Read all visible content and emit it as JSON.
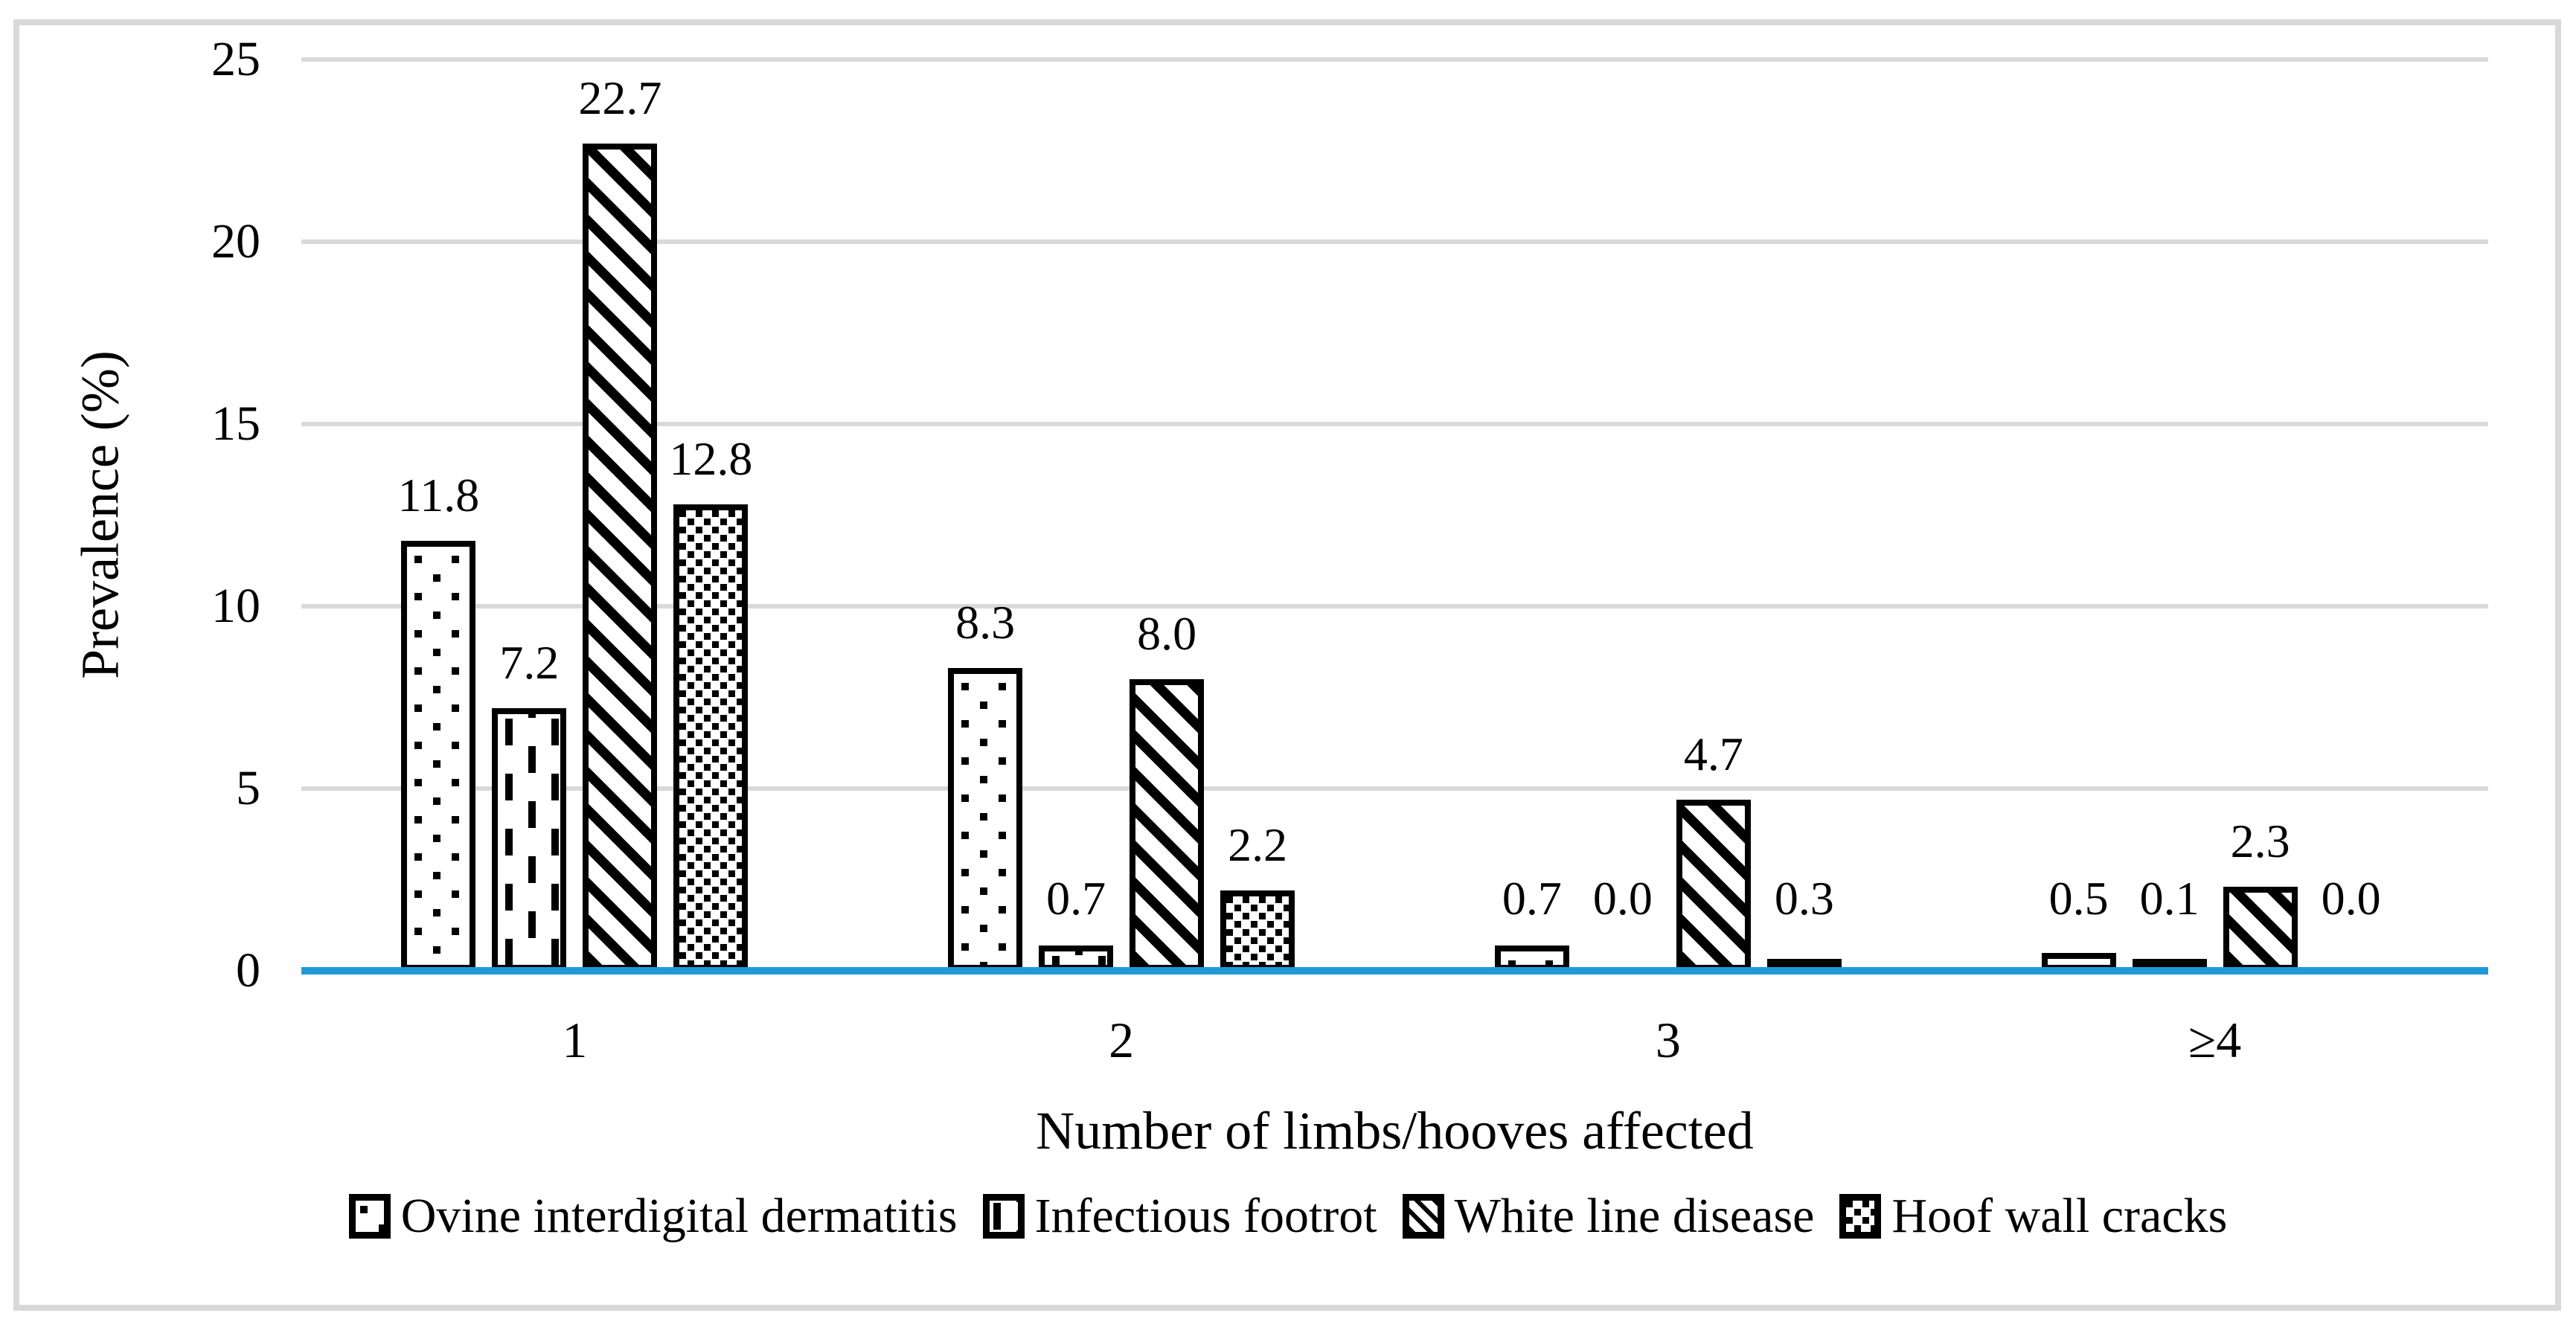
{
  "chart_data": {
    "type": "bar",
    "categories": [
      "1",
      "2",
      "3",
      "≥4"
    ],
    "series": [
      {
        "name": "Ovine interdigital dermatitis",
        "pattern": "sparse-square-dots",
        "values": [
          11.8,
          8.3,
          0.7,
          0.5
        ],
        "labels": [
          "11.8",
          "8.3",
          "0.7",
          "0.5"
        ]
      },
      {
        "name": "Infectious footrot",
        "pattern": "vertical-dashes",
        "values": [
          7.2,
          0.7,
          0.0,
          0.1
        ],
        "labels": [
          "7.2",
          "0.7",
          "0.0",
          "0.1"
        ]
      },
      {
        "name": "White line disease",
        "pattern": "diagonal-stripes",
        "values": [
          22.7,
          8.0,
          4.7,
          2.3
        ],
        "labels": [
          "22.7",
          "8.0",
          "4.7",
          "2.3"
        ]
      },
      {
        "name": "Hoof wall cracks",
        "pattern": "dense-square-dots",
        "values": [
          12.8,
          2.2,
          0.3,
          0.0
        ],
        "labels": [
          "12.8",
          "2.2",
          "0.3",
          "0.0"
        ]
      }
    ],
    "xlabel": "Number of limbs/hooves affected",
    "ylabel": "Prevalence (%)",
    "yticks": [
      0,
      5,
      10,
      15,
      20,
      25
    ],
    "ylim": [
      0,
      25
    ],
    "grid": true,
    "legend_position": "bottom",
    "value_labels": true,
    "colors": {
      "axis_baseline": "#1f9ad6",
      "gridline": "#d9d9d9",
      "frame_border": "#d9d9d9",
      "bar_fill": "#ffffff",
      "bar_border": "#000000",
      "text": "#000000",
      "background": "#ffffff"
    }
  }
}
